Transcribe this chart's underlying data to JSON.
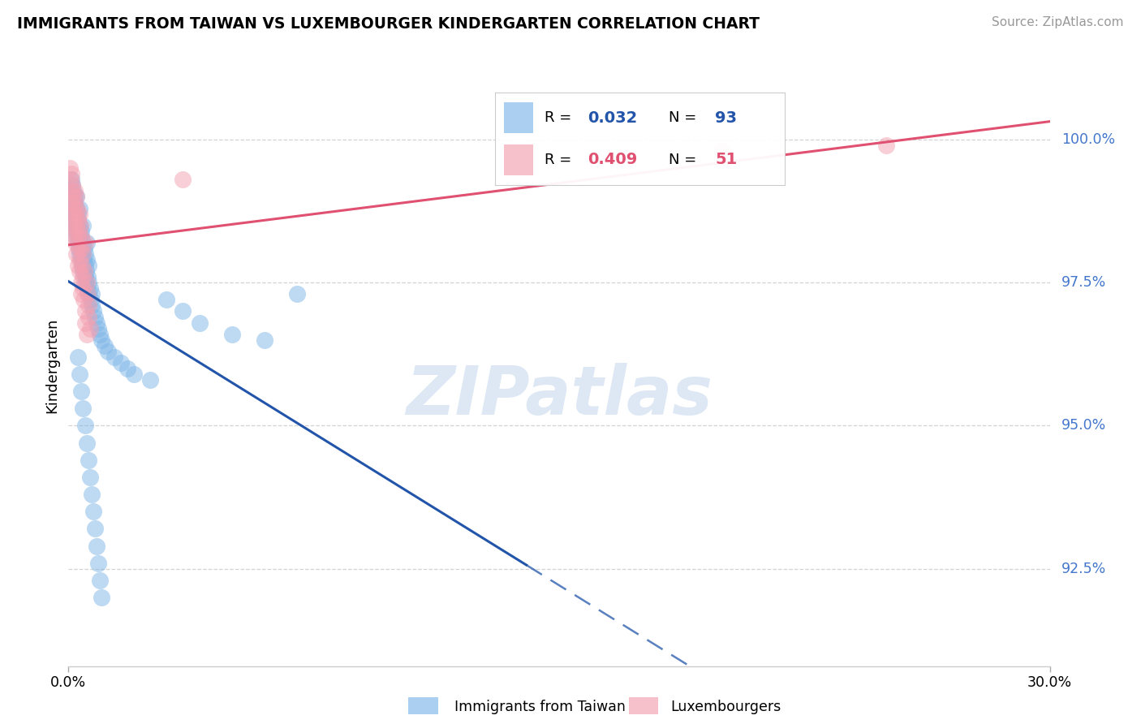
{
  "title": "IMMIGRANTS FROM TAIWAN VS LUXEMBOURGER KINDERGARTEN CORRELATION CHART",
  "source": "Source: ZipAtlas.com",
  "ylabel": "Kindergarten",
  "legend_label1": "Immigrants from Taiwan",
  "legend_label2": "Luxembourgers",
  "R1": 0.032,
  "N1": 93,
  "R2": 0.409,
  "N2": 51,
  "xmin": 0.0,
  "xmax": 30.0,
  "ymin": 90.8,
  "ymax": 101.3,
  "blue_color": "#7EB6E8",
  "pink_color": "#F4A0B0",
  "blue_line_color": "#2255AA",
  "pink_line_color": "#E05070",
  "ytick_values": [
    100.0,
    97.5,
    95.0,
    92.5
  ],
  "blue_x": [
    0.05,
    0.08,
    0.08,
    0.1,
    0.1,
    0.12,
    0.12,
    0.14,
    0.15,
    0.15,
    0.17,
    0.18,
    0.18,
    0.2,
    0.2,
    0.22,
    0.22,
    0.24,
    0.25,
    0.25,
    0.27,
    0.28,
    0.28,
    0.3,
    0.3,
    0.32,
    0.32,
    0.34,
    0.35,
    0.35,
    0.37,
    0.38,
    0.38,
    0.4,
    0.4,
    0.42,
    0.42,
    0.44,
    0.45,
    0.45,
    0.47,
    0.48,
    0.5,
    0.5,
    0.52,
    0.52,
    0.54,
    0.55,
    0.55,
    0.57,
    0.58,
    0.6,
    0.6,
    0.62,
    0.65,
    0.68,
    0.7,
    0.72,
    0.75,
    0.8,
    0.85,
    0.9,
    0.95,
    1.0,
    1.1,
    1.2,
    1.4,
    1.6,
    1.8,
    2.0,
    2.5,
    3.0,
    3.5,
    4.0,
    5.0,
    6.0,
    7.0,
    0.3,
    0.35,
    0.4,
    0.45,
    0.5,
    0.55,
    0.6,
    0.65,
    0.7,
    0.75,
    0.8,
    0.85,
    0.9,
    0.95,
    1.0
  ],
  "blue_y": [
    99.1,
    99.3,
    98.9,
    99.0,
    98.8,
    99.2,
    98.7,
    98.9,
    99.1,
    98.6,
    98.8,
    99.0,
    98.5,
    98.7,
    98.9,
    98.4,
    98.6,
    98.8,
    99.0,
    98.3,
    98.5,
    98.7,
    98.2,
    98.4,
    98.6,
    98.1,
    98.3,
    98.5,
    98.8,
    98.0,
    98.2,
    98.4,
    97.9,
    98.1,
    98.3,
    97.8,
    98.0,
    98.2,
    98.5,
    97.7,
    97.9,
    98.1,
    97.6,
    97.8,
    98.0,
    97.5,
    97.7,
    97.9,
    98.2,
    97.4,
    97.6,
    97.8,
    97.3,
    97.5,
    97.4,
    97.2,
    97.3,
    97.1,
    97.0,
    96.9,
    96.8,
    96.7,
    96.6,
    96.5,
    96.4,
    96.3,
    96.2,
    96.1,
    96.0,
    95.9,
    95.8,
    97.2,
    97.0,
    96.8,
    96.6,
    96.5,
    97.3,
    96.2,
    95.9,
    95.6,
    95.3,
    95.0,
    94.7,
    94.4,
    94.1,
    93.8,
    93.5,
    93.2,
    92.9,
    92.6,
    92.3,
    92.0
  ],
  "pink_x": [
    0.05,
    0.07,
    0.08,
    0.1,
    0.1,
    0.12,
    0.12,
    0.14,
    0.15,
    0.15,
    0.17,
    0.18,
    0.18,
    0.2,
    0.2,
    0.22,
    0.22,
    0.24,
    0.25,
    0.25,
    0.27,
    0.28,
    0.3,
    0.3,
    0.32,
    0.32,
    0.34,
    0.35,
    0.35,
    0.37,
    0.38,
    0.38,
    0.4,
    0.4,
    0.42,
    0.44,
    0.45,
    0.45,
    0.47,
    0.48,
    0.5,
    0.5,
    0.52,
    0.55,
    0.55,
    0.58,
    0.6,
    0.62,
    0.65,
    3.5,
    20.0,
    25.0
  ],
  "pink_y": [
    99.5,
    99.3,
    99.1,
    98.9,
    99.4,
    98.7,
    99.2,
    98.5,
    99.0,
    98.3,
    98.8,
    99.1,
    98.6,
    98.4,
    98.9,
    98.2,
    98.7,
    98.5,
    99.0,
    98.0,
    98.8,
    98.3,
    98.6,
    97.8,
    98.4,
    98.1,
    97.9,
    98.7,
    97.7,
    98.5,
    97.5,
    98.3,
    98.1,
    97.3,
    97.8,
    97.6,
    98.0,
    97.4,
    97.2,
    97.7,
    97.0,
    98.2,
    96.8,
    97.5,
    96.6,
    97.3,
    97.1,
    96.9,
    96.7,
    99.3,
    99.8,
    99.9
  ],
  "blue_solid_end_x": 14.0,
  "watermark_text": "ZIPatlas"
}
